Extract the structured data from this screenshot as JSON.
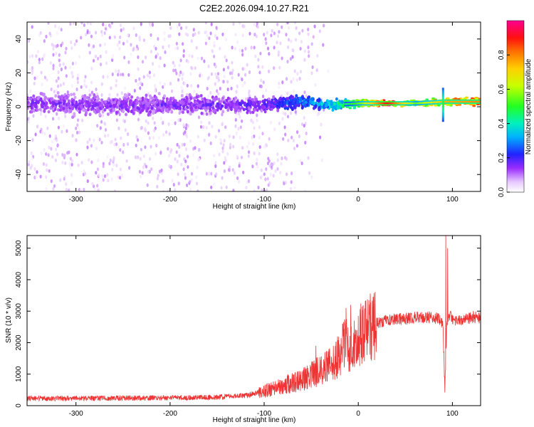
{
  "chart_data": [
    {
      "type": "heatmap",
      "title": "C2E2.2026.094.10.27.R21",
      "xlabel": "Height of straight line (km)",
      "ylabel": "Frequency (Hz)",
      "xlim": [
        -352,
        130
      ],
      "ylim": [
        -50,
        50
      ],
      "xticks": [
        -300,
        -200,
        -100,
        0,
        100
      ],
      "yticks": [
        -40,
        -20,
        0,
        20,
        40
      ],
      "colorbar": {
        "label": "Normalized spectral amplitude",
        "range": [
          0.0,
          1.0
        ],
        "ticks": [
          "0.0",
          "0.2",
          "0.4",
          "0.6",
          "0.8"
        ],
        "tick_values": [
          0.0,
          0.2,
          0.4,
          0.6,
          0.8
        ]
      },
      "band_profile": [
        {
          "x": -350,
          "center": 2,
          "halfwidth": 6,
          "amplitude": 0.15
        },
        {
          "x": -250,
          "center": 1,
          "halfwidth": 6,
          "amplitude": 0.15
        },
        {
          "x": -150,
          "center": 1,
          "halfwidth": 5,
          "amplitude": 0.16
        },
        {
          "x": -100,
          "center": 1,
          "halfwidth": 4,
          "amplitude": 0.18
        },
        {
          "x": -60,
          "center": 3,
          "halfwidth": 4,
          "amplitude": 0.28
        },
        {
          "x": -30,
          "center": 1,
          "halfwidth": 3,
          "amplitude": 0.35
        },
        {
          "x": 0,
          "center": 2,
          "halfwidth": 2,
          "amplitude": 0.55
        },
        {
          "x": 30,
          "center": 2,
          "halfwidth": 1.5,
          "amplitude": 0.92
        },
        {
          "x": 60,
          "center": 2,
          "halfwidth": 1.5,
          "amplitude": 0.55
        },
        {
          "x": 90,
          "center": 3,
          "halfwidth": 2,
          "amplitude": 0.75
        },
        {
          "x": 130,
          "center": 3,
          "halfwidth": 2,
          "amplitude": 0.8
        }
      ]
    },
    {
      "type": "line",
      "xlabel": "Height of straight line (km)",
      "ylabel": "SNR (10 * v/v)",
      "xlim": [
        -352,
        130
      ],
      "ylim": [
        0,
        5400
      ],
      "xticks": [
        -300,
        -200,
        -100,
        0,
        100
      ],
      "yticks": [
        0,
        1000,
        2000,
        3000,
        4000,
        5000
      ],
      "color": "#ee3333",
      "series": [
        {
          "name": "SNR",
          "x": [
            -352,
            -300,
            -250,
            -200,
            -150,
            -120,
            -100,
            -80,
            -60,
            -50,
            -40,
            -30,
            -20,
            -15,
            -10,
            -5,
            0,
            10,
            20,
            30,
            40,
            50,
            60,
            70,
            80,
            85,
            90,
            92,
            94,
            96,
            100,
            110,
            120,
            130
          ],
          "y": [
            230,
            230,
            240,
            250,
            270,
            320,
            450,
            650,
            800,
            1000,
            1100,
            1300,
            1600,
            2000,
            1800,
            2000,
            2200,
            2400,
            2600,
            2700,
            2750,
            2750,
            2800,
            2800,
            2800,
            2750,
            2600,
            500,
            2600,
            2900,
            2750,
            2700,
            2800,
            2800
          ],
          "spikes": [
            {
              "x": -45,
              "y": 1900
            },
            {
              "x": -13,
              "y": 3100
            },
            {
              "x": -8,
              "y": 3200
            },
            {
              "x": 13,
              "y": 3150
            },
            {
              "x": 93,
              "y": 5400
            },
            {
              "x": 95,
              "y": 5000
            }
          ]
        }
      ]
    }
  ]
}
